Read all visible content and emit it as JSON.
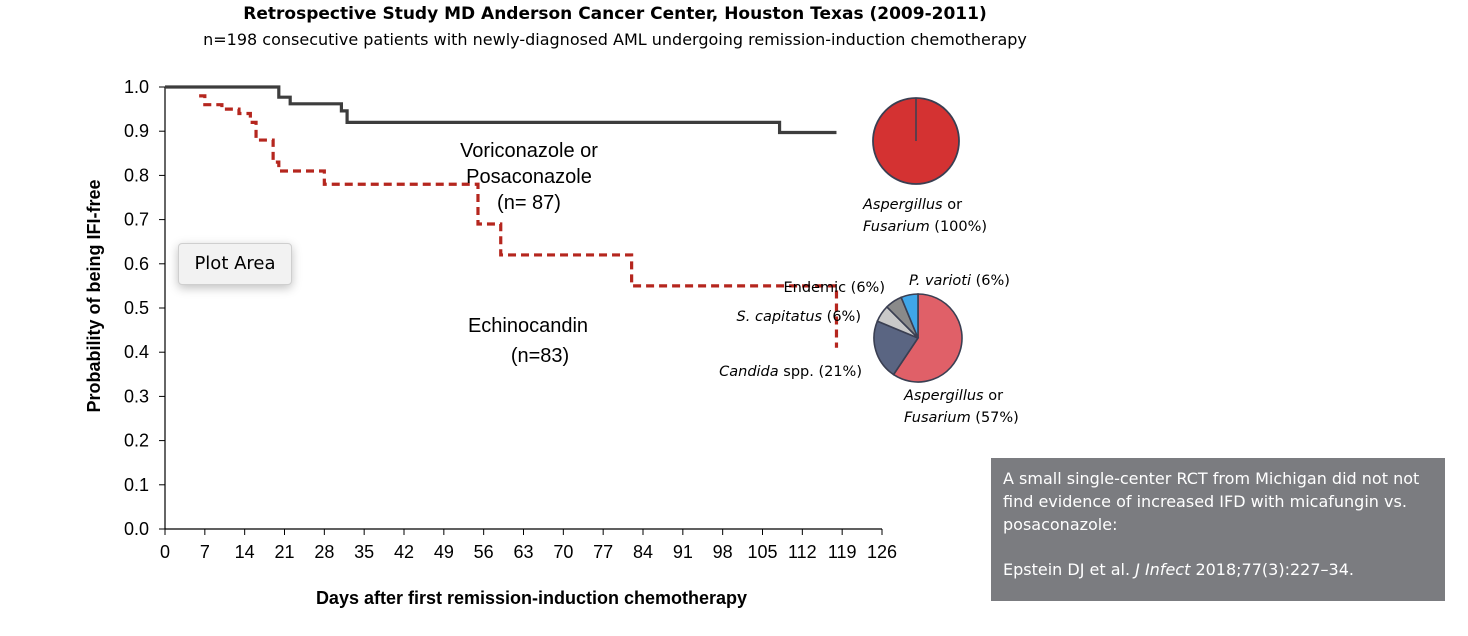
{
  "header": {
    "title": "Retrospective Study MD Anderson Cancer Center, Houston Texas (2009-2011)",
    "subtitle": "n=198 consecutive patients with newly-diagnosed AML undergoing remission-induction chemotherapy"
  },
  "plot_area_label": "Plot Area",
  "note": {
    "text": "A small single-center RCT from Michigan did not not find evidence of increased IFD with micafungin vs. posaconazole:",
    "citation_prefix": "Epstein DJ et al. ",
    "citation_journal": "J Infect",
    "citation_suffix": " 2018;77(3):227–34."
  },
  "chart_data": [
    {
      "type": "line",
      "subtype": "kaplan-meier-step",
      "xlabel": "Days after first remission-induction chemotherapy",
      "ylabel": "Probability of being IFI-free",
      "xlim": [
        0,
        126
      ],
      "ylim": [
        0,
        1
      ],
      "xticks": [
        0,
        7,
        14,
        21,
        28,
        35,
        42,
        49,
        56,
        63,
        70,
        77,
        84,
        91,
        98,
        105,
        112,
        119,
        126
      ],
      "yticks": [
        0.0,
        0.1,
        0.2,
        0.3,
        0.4,
        0.5,
        0.6,
        0.7,
        0.8,
        0.9,
        1.0
      ],
      "grid": false,
      "series": [
        {
          "name": "Voriconazole or Posaconazole (n= 87)",
          "label_lines": [
            "Voriconazole or",
            "Posaconazole",
            "(n= 87)"
          ],
          "color": "#3d3d3d",
          "style": "solid",
          "x": [
            0,
            20,
            22,
            31,
            32,
            108,
            118
          ],
          "y": [
            1.0,
            0.977,
            0.962,
            0.946,
            0.92,
            0.897,
            0.897
          ]
        },
        {
          "name": "Echinocandin (n=83)",
          "label_lines": [
            "Echinocandin",
            "(n=83)"
          ],
          "color": "#b5261e",
          "style": "dashed",
          "x": [
            6,
            7,
            10,
            13,
            15,
            16,
            19,
            20,
            28,
            55,
            59,
            82,
            118
          ],
          "y": [
            0.98,
            0.96,
            0.95,
            0.94,
            0.92,
            0.88,
            0.83,
            0.81,
            0.78,
            0.69,
            0.62,
            0.55,
            0.41
          ]
        }
      ]
    },
    {
      "type": "pie",
      "group": "Voriconazole or Posaconazole",
      "slices": [
        {
          "label": "Aspergillus or Fusarium (100%)",
          "label_italic": "Aspergillus",
          "label_rest": " or",
          "label_line2_italic": "Fusarium",
          "label_line2_rest": " (100%)",
          "value": 100,
          "color": "#d43232"
        }
      ]
    },
    {
      "type": "pie",
      "group": "Echinocandin",
      "slices": [
        {
          "label": "Aspergillus or Fusarium (57%)",
          "label_italic": "Aspergillus",
          "label_rest": " or",
          "label_line2_italic": "Fusarium",
          "label_line2_rest": " (57%)",
          "value": 57,
          "color": "#e06068"
        },
        {
          "label": "Candida spp. (21%)",
          "label_italic": "Candida",
          "label_rest": " spp. (21%)",
          "value": 21,
          "color": "#5a6582"
        },
        {
          "label": "S. capitatus (6%)",
          "label_italic": "S. capitatus",
          "label_rest": " (6%)",
          "value": 6,
          "color": "#c9c9c9"
        },
        {
          "label": "Endemic (6%)",
          "label_italic": "",
          "label_rest": "Endemic (6%)",
          "value": 6,
          "color": "#8a8a8a"
        },
        {
          "label": "P. varioti (6%)",
          "label_italic": "P. varioti",
          "label_rest": " (6%)",
          "value": 6,
          "color": "#3fa6e8"
        }
      ]
    }
  ]
}
